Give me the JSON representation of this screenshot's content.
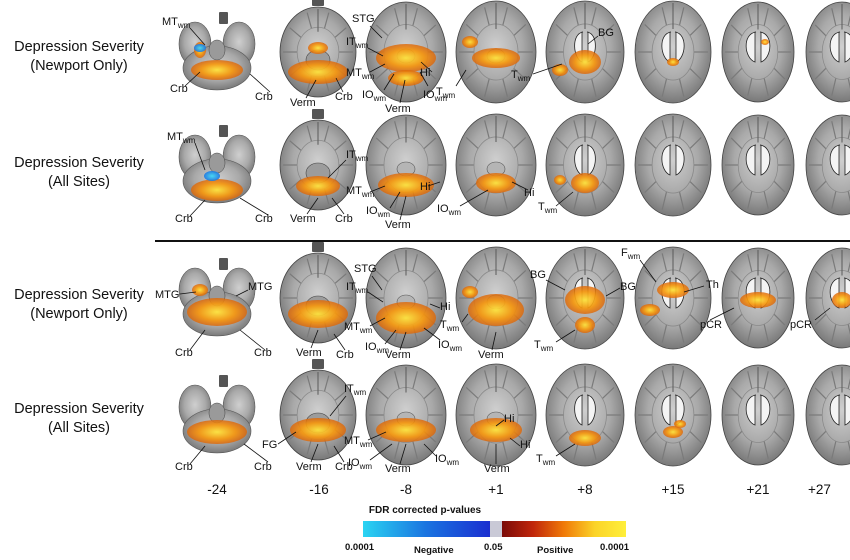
{
  "rows": [
    {
      "line1": "Depression Severity",
      "line2": "(Newport Only)"
    },
    {
      "line1": "Depression Severity",
      "line2": "(All Sites)"
    },
    {
      "line1": "Depression Severity",
      "line2": "(Newport Only)"
    },
    {
      "line1": "Depression Severity",
      "line2": "(All Sites)"
    }
  ],
  "slices": [
    "-24",
    "-16",
    "-8",
    "+1",
    "+8",
    "+15",
    "+21",
    "+27"
  ],
  "colorbar": {
    "title": "FDR corrected  p-values",
    "neg_min": "0.0001",
    "neg_label": "Negative",
    "mid": "0.05",
    "pos_label": "Positive",
    "pos_max": "0.0001",
    "negative_colors": [
      "#2ad4f2",
      "#1a73e0",
      "#1b2fd0"
    ],
    "positive_colors": [
      "#7a0a08",
      "#c0260a",
      "#f07a08",
      "#fbd428",
      "#ffef3a"
    ]
  },
  "annotations": {
    "MT": "MT",
    "IT": "IT",
    "IO": "IO",
    "T": "T",
    "wm": "wm",
    "Crb": "Crb",
    "Verm": "Verm",
    "STG": "STG",
    "Hi": "Hi",
    "BG": "BG",
    "MTG": "MTG",
    "FG": "FG",
    "F": "F",
    "Th": "Th",
    "pCR": "pCR"
  }
}
